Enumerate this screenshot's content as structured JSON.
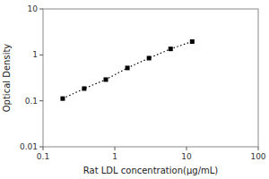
{
  "chart_data": {
    "type": "line",
    "xlabel": "Rat LDL concentration(μg/mL)",
    "ylabel": "Optical Density",
    "x": [
      0.188,
      0.375,
      0.75,
      1.5,
      3.0,
      6.0,
      12.0
    ],
    "values": [
      0.112,
      0.185,
      0.29,
      0.52,
      0.85,
      1.35,
      1.95
    ],
    "xlim": [
      0.1,
      100
    ],
    "ylim": [
      0.01,
      10
    ],
    "xticks": [
      0.1,
      1,
      10,
      100
    ],
    "yticks": [
      0.01,
      0.1,
      1,
      10
    ],
    "log": true,
    "color": "black",
    "marker": "square",
    "line_style": "dotted"
  }
}
